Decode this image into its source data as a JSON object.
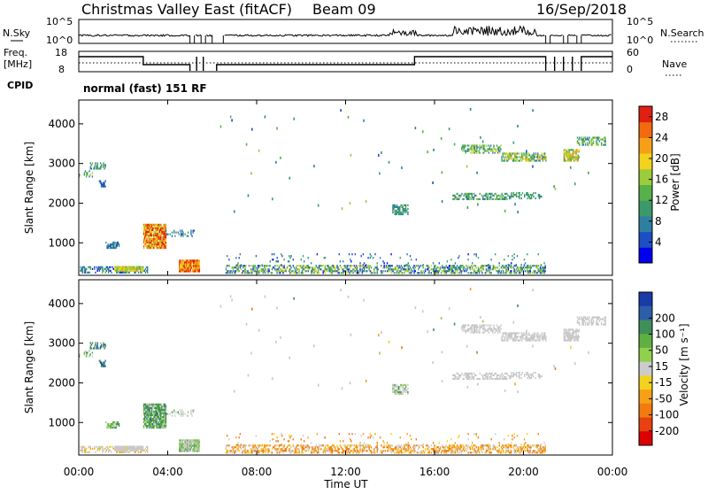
{
  "header": {
    "station": "Christmas Valley East (fitACF)",
    "beam": "Beam 09",
    "date": "16/Sep/2018"
  },
  "status_panels": {
    "nsky_label": "N.Sky",
    "nsearch_label": "N.Search",
    "noise_ticks": [
      "10^5",
      "10^0"
    ],
    "freq_label_line1": "Freq.",
    "freq_label_line2": "[MHz]",
    "freq_ticks": [
      "18",
      "8"
    ],
    "nave_label": "Nave",
    "nave_ticks": [
      "60",
      "0"
    ],
    "cpid_label": "CPID",
    "cpid_text": "normal (fast) 151 RF"
  },
  "chart_data": [
    {
      "type": "heatmap",
      "name": "power",
      "xlabel": "Time UT",
      "ylabel": "Slant Range [km]",
      "x_ticks": [
        "00:00",
        "04:00",
        "08:00",
        "12:00",
        "16:00",
        "20:00",
        "00:00"
      ],
      "x_tick_hours": [
        0,
        4,
        8,
        12,
        16,
        20,
        24
      ],
      "xlim_hours": [
        0,
        24
      ],
      "y_ticks": [
        1000,
        2000,
        3000,
        4000
      ],
      "ylim_km": [
        180,
        4600
      ],
      "colorbar": {
        "label": "Power [dB]",
        "ticks": [
          4,
          8,
          12,
          16,
          20,
          24,
          28
        ],
        "range": [
          0,
          30
        ],
        "colors": [
          "#0000ee",
          "#1c4fc4",
          "#2f7fa0",
          "#3c9a6a",
          "#58b04a",
          "#9bcc3c",
          "#f2d21c",
          "#f6a017",
          "#f26a10",
          "#e02010"
        ]
      }
    },
    {
      "type": "heatmap",
      "name": "velocity",
      "xlabel": "Time UT",
      "ylabel": "Slant Range [km]",
      "x_ticks": [
        "00:00",
        "04:00",
        "08:00",
        "12:00",
        "16:00",
        "20:00",
        "00:00"
      ],
      "x_tick_hours": [
        0,
        4,
        8,
        12,
        16,
        20,
        24
      ],
      "xlim_hours": [
        0,
        24
      ],
      "y_ticks": [
        1000,
        2000,
        3000,
        4000
      ],
      "ylim_km": [
        180,
        4600
      ],
      "colorbar": {
        "label": "Velocity [m s⁻¹]",
        "ticks": [
          "200",
          "100",
          "50",
          "15",
          "-15",
          "-50",
          "-100",
          "-200"
        ],
        "colors": [
          "#1a3aa8",
          "#2d5fa8",
          "#3f8f5a",
          "#5fb040",
          "#8fd04f",
          "#cccccc",
          "#f2d21c",
          "#f6a017",
          "#f27a10",
          "#e84010",
          "#dd0000"
        ]
      }
    }
  ],
  "scatter_regions": [
    {
      "t0": 0.05,
      "t1": 3.1,
      "r0": 230,
      "r1": 400,
      "p": 0.45,
      "power": [
        2,
        14
      ],
      "vel": [
        -12,
        -40
      ],
      "gray": 0.4
    },
    {
      "t0": 1.6,
      "t1": 2.9,
      "r0": 280,
      "r1": 380,
      "p": 0.95,
      "power": [
        14,
        22
      ],
      "vel": [
        -5,
        -15
      ],
      "gray": 0.7
    },
    {
      "t0": 4.5,
      "t1": 5.4,
      "r0": 260,
      "r1": 550,
      "p": 0.95,
      "power": [
        18,
        30
      ],
      "vel": [
        10,
        40
      ],
      "gray": 0.2
    },
    {
      "t0": 6.6,
      "t1": 21.0,
      "r0": 220,
      "r1": 420,
      "p": 0.5,
      "power": [
        2,
        20
      ],
      "vel": [
        -20,
        -60
      ],
      "gray": 0.05
    },
    {
      "t0": 6.6,
      "t1": 21.0,
      "r0": 420,
      "r1": 700,
      "p": 0.05,
      "power": [
        2,
        12
      ],
      "vel": [
        -20,
        -60
      ],
      "gray": 0.05
    },
    {
      "t0": 0.5,
      "t1": 1.2,
      "r0": 2850,
      "r1": 3000,
      "p": 0.5,
      "power": [
        6,
        14
      ],
      "vel": [
        60,
        100
      ],
      "gray": 0.1
    },
    {
      "t0": 0.9,
      "t1": 1.2,
      "r0": 2400,
      "r1": 2550,
      "p": 0.4,
      "power": [
        4,
        8
      ],
      "vel": [
        80,
        150
      ],
      "gray": 0.0
    },
    {
      "t0": 0.0,
      "t1": 0.6,
      "r0": 2650,
      "r1": 2800,
      "p": 0.3,
      "power": [
        8,
        16
      ],
      "vel": [
        30,
        80
      ],
      "gray": 0.1
    },
    {
      "t0": 1.2,
      "t1": 1.8,
      "r0": 850,
      "r1": 1000,
      "p": 0.6,
      "power": [
        4,
        10
      ],
      "vel": [
        30,
        60
      ],
      "gray": 0.2
    },
    {
      "t0": 2.9,
      "t1": 3.9,
      "r0": 850,
      "r1": 1450,
      "p": 0.85,
      "power": [
        16,
        30
      ],
      "vel": [
        30,
        80
      ],
      "gray": 0.1
    },
    {
      "t0": 3.9,
      "t1": 5.2,
      "r0": 1150,
      "r1": 1300,
      "p": 0.3,
      "power": [
        4,
        12
      ],
      "vel": [
        10,
        40
      ],
      "gray": 0.5
    },
    {
      "t0": 14.1,
      "t1": 14.8,
      "r0": 1700,
      "r1": 1950,
      "p": 0.6,
      "power": [
        6,
        14
      ],
      "vel": [
        10,
        50
      ],
      "gray": 0.5
    },
    {
      "t0": 16.8,
      "t1": 19.3,
      "r0": 2080,
      "r1": 2250,
      "p": 0.55,
      "power": [
        6,
        16
      ],
      "vel": [
        -5,
        5
      ],
      "gray": 0.85
    },
    {
      "t0": 19.3,
      "t1": 20.8,
      "r0": 2100,
      "r1": 2250,
      "p": 0.35,
      "power": [
        6,
        14
      ],
      "vel": [
        -5,
        5
      ],
      "gray": 0.85
    },
    {
      "t0": 17.2,
      "t1": 19.0,
      "r0": 3250,
      "r1": 3450,
      "p": 0.55,
      "power": [
        6,
        20
      ],
      "vel": [
        -5,
        5
      ],
      "gray": 0.85
    },
    {
      "t0": 19.0,
      "t1": 21.0,
      "r0": 3050,
      "r1": 3250,
      "p": 0.6,
      "power": [
        6,
        22
      ],
      "vel": [
        -5,
        5
      ],
      "gray": 0.85
    },
    {
      "t0": 21.8,
      "t1": 22.5,
      "r0": 3050,
      "r1": 3350,
      "p": 0.7,
      "power": [
        10,
        24
      ],
      "vel": [
        -5,
        5
      ],
      "gray": 0.8
    },
    {
      "t0": 22.4,
      "t1": 23.7,
      "r0": 3450,
      "r1": 3650,
      "p": 0.55,
      "power": [
        6,
        18
      ],
      "vel": [
        -5,
        5
      ],
      "gray": 0.85
    }
  ]
}
